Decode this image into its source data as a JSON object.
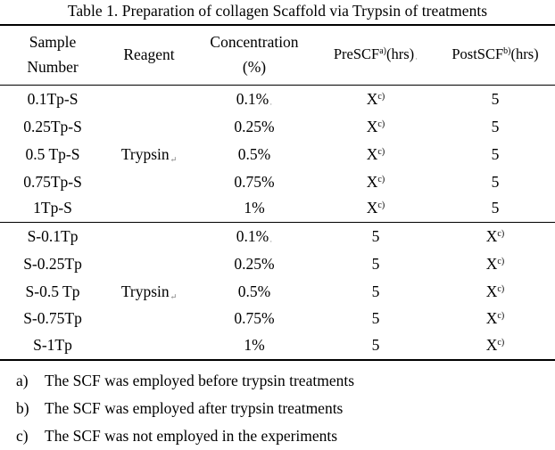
{
  "table": {
    "caption": "Table 1. Preparation of collagen Scaffold via Trypsin of treatments",
    "headers": {
      "sample": [
        "Sample",
        "Number"
      ],
      "reagent": "Reagent",
      "concentration": [
        "Concentration",
        "(%)"
      ],
      "pre": {
        "label": "PreSCF",
        "sup": "a)",
        "unit": "(hrs)"
      },
      "post": {
        "label": "PostSCF",
        "sup": "b)",
        "unit": "(hrs)"
      }
    },
    "group1": {
      "reagent": "Trypsin",
      "rows": [
        {
          "sample": "0.1Tp-S",
          "conc": "0.1%",
          "pre": "X",
          "pre_sup": "c)",
          "post": "5"
        },
        {
          "sample": "0.25Tp-S",
          "conc": "0.25%",
          "pre": "X",
          "pre_sup": "c)",
          "post": "5"
        },
        {
          "sample": "0.5 Tp-S",
          "conc": "0.5%",
          "pre": "X",
          "pre_sup": "c)",
          "post": "5"
        },
        {
          "sample": "0.75Tp-S",
          "conc": "0.75%",
          "pre": "X",
          "pre_sup": "c)",
          "post": "5"
        },
        {
          "sample": "1Tp-S",
          "conc": "1%",
          "pre": "X",
          "pre_sup": "c)",
          "post": "5"
        }
      ]
    },
    "group2": {
      "reagent": "Trypsin",
      "rows": [
        {
          "sample": "S-0.1Tp",
          "conc": "0.1%",
          "pre": "5",
          "post": "X",
          "post_sup": "c)"
        },
        {
          "sample": "S-0.25Tp",
          "conc": "0.25%",
          "pre": "5",
          "post": "X",
          "post_sup": "c)"
        },
        {
          "sample": "S-0.5 Tp",
          "conc": "0.5%",
          "pre": "5",
          "post": "X",
          "post_sup": "c)"
        },
        {
          "sample": "S-0.75Tp",
          "conc": "0.75%",
          "pre": "5",
          "post": "X",
          "post_sup": "c)"
        },
        {
          "sample": "S-1Tp",
          "conc": "1%",
          "pre": "5",
          "post": "X",
          "post_sup": "c)"
        }
      ]
    }
  },
  "footnotes": [
    {
      "label": "a)",
      "text": "The SCF was employed before trypsin treatments"
    },
    {
      "label": "b)",
      "text": "The SCF was employed after trypsin treatments"
    },
    {
      "label": "c)",
      "text": "The SCF was not employed in the experiments"
    }
  ]
}
